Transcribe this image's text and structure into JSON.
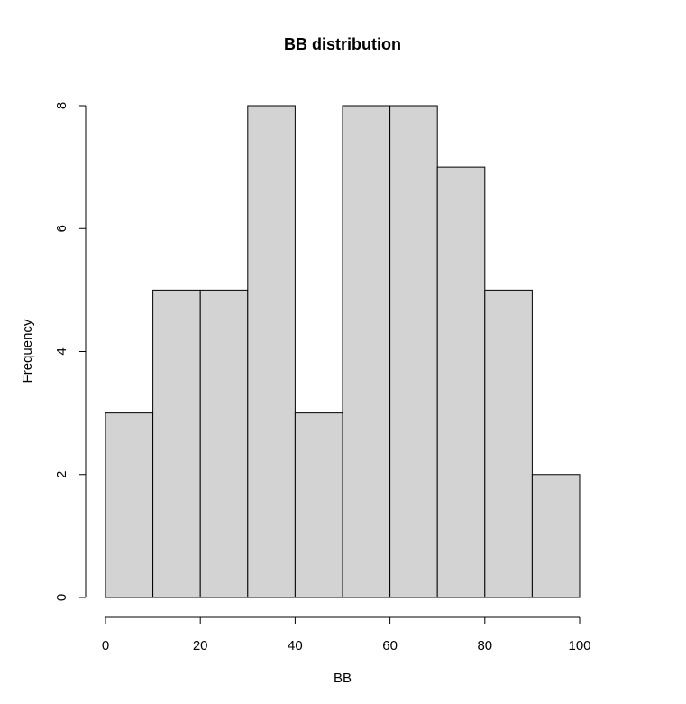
{
  "chart_data": {
    "type": "bar",
    "title": "BB distribution",
    "xlabel": "BB",
    "ylabel": "Frequency",
    "bins": [
      {
        "start": 0,
        "end": 10,
        "count": 3
      },
      {
        "start": 10,
        "end": 20,
        "count": 5
      },
      {
        "start": 20,
        "end": 30,
        "count": 5
      },
      {
        "start": 30,
        "end": 40,
        "count": 8
      },
      {
        "start": 40,
        "end": 50,
        "count": 3
      },
      {
        "start": 50,
        "end": 60,
        "count": 8
      },
      {
        "start": 60,
        "end": 70,
        "count": 8
      },
      {
        "start": 70,
        "end": 80,
        "count": 7
      },
      {
        "start": 80,
        "end": 90,
        "count": 5
      },
      {
        "start": 90,
        "end": 100,
        "count": 2
      }
    ],
    "xlim": [
      0,
      100
    ],
    "ylim": [
      0,
      8
    ],
    "xticks": [
      0,
      20,
      40,
      60,
      80,
      100
    ],
    "yticks": [
      0,
      2,
      4,
      6,
      8
    ],
    "bar_color": "#d3d3d3",
    "edge_color": "#000000",
    "grid": false,
    "legend": "none"
  }
}
